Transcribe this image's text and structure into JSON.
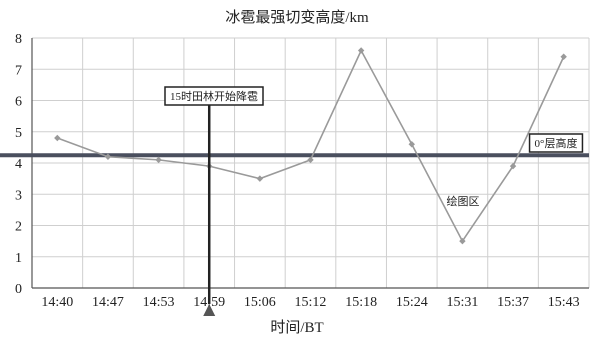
{
  "chart_data": {
    "type": "line",
    "title": "冰雹最强切变高度/km",
    "xlabel": "时间/BT",
    "ylabel": "",
    "categories": [
      "14:40",
      "14:47",
      "14:53",
      "14:59",
      "15:06",
      "15:12",
      "15:18",
      "15:24",
      "15:31",
      "15:37",
      "15:43"
    ],
    "series": [
      {
        "values": [
          4.8,
          4.2,
          4.1,
          3.9,
          3.5,
          4.1,
          7.6,
          4.6,
          1.5,
          3.9,
          7.4
        ]
      }
    ],
    "ylim": [
      0,
      8
    ],
    "yticks": [
      0,
      1,
      2,
      3,
      4,
      5,
      6,
      7,
      8
    ],
    "grid": true,
    "reference_line": {
      "label": "0°层高度",
      "value": 4.25
    },
    "event_marker": {
      "label": "15时田林开始降雹",
      "category_index": 3
    },
    "area_label": "绘图区",
    "colors": {
      "series": "#9a9a9a",
      "reference": "#4a4f5e",
      "marker": "#222222",
      "grid": "#cfcfcf"
    }
  }
}
